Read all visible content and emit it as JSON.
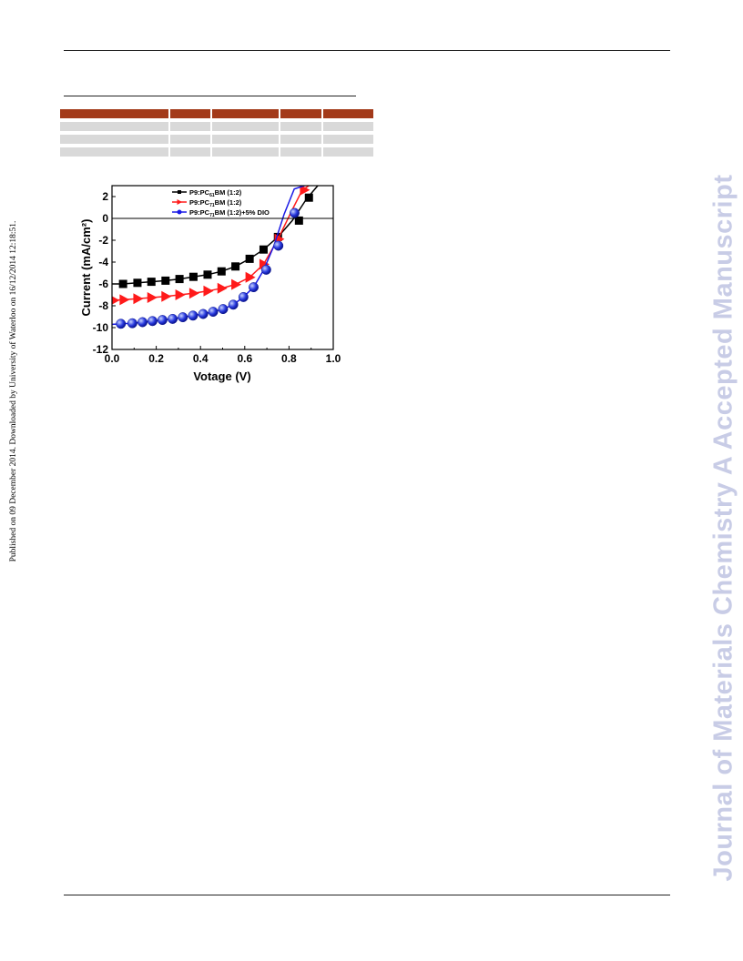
{
  "side_watermark": "Journal of Materials Chemistry A Accepted Manuscript",
  "side_provenance": "Published on 09 December 2014. Downloaded by University of Waterloo on 16/12/2014 12:18:51.",
  "table": {
    "header_color": "#a33a1a",
    "row_color": "#d9d9d9",
    "column_count": 5,
    "row_count": 3
  },
  "chart_data": {
    "type": "line",
    "xlabel": "Votage (V)",
    "ylabel": "Current (mA/cm²)",
    "xlim": [
      0.0,
      1.0
    ],
    "ylim": [
      -12,
      3
    ],
    "x_ticks": [
      0.0,
      0.2,
      0.4,
      0.6,
      0.8,
      1.0
    ],
    "x_tick_labels": [
      "0.0",
      "0.2",
      "0.4",
      "0.6",
      "0.8",
      "1.0"
    ],
    "y_ticks": [
      -12,
      -10,
      -8,
      -6,
      -4,
      -2,
      0,
      2
    ],
    "y_tick_labels": [
      "-12",
      "-10",
      "-8",
      "-6",
      "-4",
      "-2",
      "0",
      "2"
    ],
    "grid": false,
    "zero_line": true,
    "legend_position": "top-left",
    "series": [
      {
        "name": "P9:PC61BM (1:2)",
        "legend_label": {
          "base": "P9:PC",
          "sub": "61",
          "rest": "BM (1:2)"
        },
        "color": "#000000",
        "marker": "square",
        "x": [
          0.0,
          0.05,
          0.115,
          0.178,
          0.242,
          0.305,
          0.368,
          0.432,
          0.495,
          0.558,
          0.622,
          0.685,
          0.75,
          0.815,
          0.88,
          0.93
        ],
        "y": [
          -6.0,
          -6.0,
          -5.9,
          -5.8,
          -5.7,
          -5.55,
          -5.35,
          -5.15,
          -4.85,
          -4.4,
          -3.7,
          -2.85,
          -1.7,
          -0.2,
          1.8,
          3.0
        ],
        "marker_x": [
          0.05,
          0.115,
          0.178,
          0.242,
          0.305,
          0.368,
          0.432,
          0.495,
          0.558,
          0.622,
          0.685,
          0.75,
          0.845,
          0.89
        ],
        "marker_y": [
          -6.0,
          -5.9,
          -5.8,
          -5.7,
          -5.55,
          -5.35,
          -5.15,
          -4.85,
          -4.4,
          -3.7,
          -2.85,
          -1.7,
          -0.2,
          1.9
        ]
      },
      {
        "name": "P9:PC71BM (1:2)",
        "legend_label": {
          "base": "P9:PC",
          "sub": "71",
          "rest": "BM (1:2)"
        },
        "color": "#ff1a1a",
        "marker": "triangle-right",
        "x": [
          0.0,
          0.05,
          0.115,
          0.178,
          0.242,
          0.305,
          0.368,
          0.432,
          0.495,
          0.558,
          0.622,
          0.685,
          0.75,
          0.815,
          0.86,
          0.89
        ],
        "y": [
          -7.5,
          -7.45,
          -7.35,
          -7.25,
          -7.15,
          -7.0,
          -6.85,
          -6.65,
          -6.4,
          -6.05,
          -5.4,
          -4.2,
          -1.9,
          0.8,
          2.6,
          3.0
        ],
        "marker_x": [
          0.01,
          0.055,
          0.117,
          0.18,
          0.244,
          0.307,
          0.37,
          0.434,
          0.497,
          0.56,
          0.624,
          0.687,
          0.755,
          0.87
        ],
        "marker_y": [
          -7.5,
          -7.45,
          -7.35,
          -7.25,
          -7.15,
          -7.0,
          -6.85,
          -6.65,
          -6.4,
          -6.05,
          -5.4,
          -4.2,
          -1.9,
          2.6
        ]
      },
      {
        "name": "P9:PC71BM (1:2)+5% DIO",
        "legend_label": {
          "base": "P9:PC",
          "sub": "71",
          "rest": "BM (1:2)+5% DIO"
        },
        "color": "#1a1ae6",
        "marker": "circle",
        "x": [
          0.0,
          0.04,
          0.092,
          0.138,
          0.183,
          0.228,
          0.274,
          0.32,
          0.366,
          0.412,
          0.457,
          0.502,
          0.548,
          0.594,
          0.64,
          0.686,
          0.732,
          0.778,
          0.824,
          0.87
        ],
        "y": [
          -9.7,
          -9.65,
          -9.6,
          -9.5,
          -9.4,
          -9.3,
          -9.2,
          -9.05,
          -8.9,
          -8.75,
          -8.55,
          -8.3,
          -7.9,
          -7.2,
          -6.3,
          -4.7,
          -2.5,
          0.4,
          2.7,
          3.0
        ],
        "marker_x": [
          0.04,
          0.092,
          0.138,
          0.183,
          0.228,
          0.274,
          0.32,
          0.366,
          0.412,
          0.457,
          0.502,
          0.548,
          0.594,
          0.64,
          0.697,
          0.752,
          0.825
        ],
        "marker_y": [
          -9.65,
          -9.6,
          -9.5,
          -9.4,
          -9.3,
          -9.2,
          -9.05,
          -8.9,
          -8.75,
          -8.55,
          -8.3,
          -7.9,
          -7.2,
          -6.3,
          -4.7,
          -2.5,
          0.5
        ]
      }
    ]
  }
}
